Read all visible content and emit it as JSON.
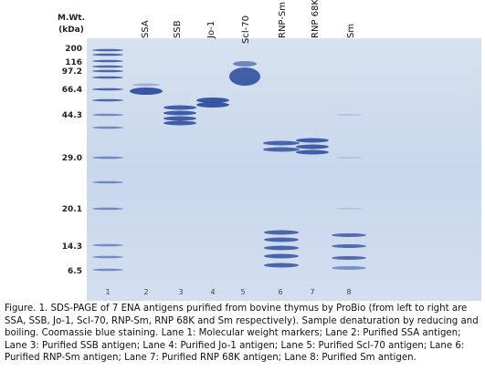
{
  "figure": {
    "mw_header": [
      "M.Wt.",
      "(kDa)"
    ],
    "markers": [
      "200",
      "116",
      "97.2",
      "66.4",
      "44.3",
      "29.0",
      "20.1",
      "14.3",
      "6.5"
    ],
    "lane_labels": [
      "SSA",
      "SSB",
      "Jo-1",
      "Scl-70",
      "RNP-Sm",
      "RNP 68K",
      "Sm"
    ],
    "lane_numbers": [
      "1",
      "2",
      "3",
      "4",
      "5",
      "6",
      "7",
      "8"
    ],
    "caption": "Figure. 1. SDS-PAGE of 7 ENA antigens purified from bovine thymus by ProBio (from left to right are SSA, SSB, Jo-1, Scl-70, RNP-Sm, RNP 68K and Sm respectively). Sample denaturation by reducing and boiling. Coomassie blue staining. Lane 1: Molecular weight markers; Lane 2: Purified SSA antigen; Lane 3: Purified SSB antigen; Lane 4: Purified Jo-1 antigen; Lane 5: Purified Scl-70 antigen; Lane 6: Purified RNP-Sm antigen; Lane 7: Purified RNP 68K antigen; Lane 8: Purified Sm antigen."
  }
}
